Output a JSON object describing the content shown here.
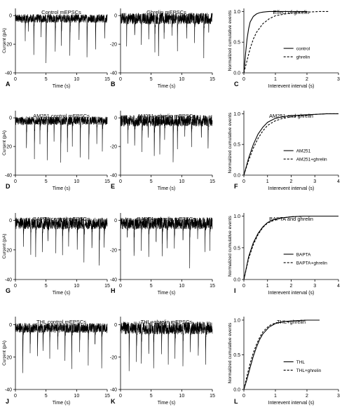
{
  "chart_data": [
    {
      "type": "line",
      "panel": "A",
      "title": "Control mEPSCs",
      "xlabel": "Time (s)",
      "ylabel": "Current (pA)",
      "xlim": [
        0,
        15
      ],
      "ylim": [
        -40,
        5
      ],
      "xticks": [
        0,
        5,
        10,
        15
      ],
      "yticks": [
        0,
        -20,
        -40
      ],
      "trace": "mEPSC recording",
      "baseline_pA": -2,
      "noise_pA": 3,
      "events": [
        {
          "t": 1.6,
          "amp": -14
        },
        {
          "t": 2.1,
          "amp": -10
        },
        {
          "t": 3.0,
          "amp": -24
        },
        {
          "t": 4.2,
          "amp": -12
        },
        {
          "t": 5.0,
          "amp": -34
        },
        {
          "t": 6.5,
          "amp": -22
        },
        {
          "t": 7.5,
          "amp": -17
        },
        {
          "t": 8.9,
          "amp": -28
        },
        {
          "t": 10.4,
          "amp": -15
        },
        {
          "t": 11.7,
          "amp": -27
        },
        {
          "t": 13.1,
          "amp": -19
        },
        {
          "t": 14.6,
          "amp": -12
        }
      ]
    },
    {
      "type": "line",
      "panel": "B",
      "title": "Ghrelin mEPSCs",
      "xlabel": "Time (s)",
      "ylabel": "",
      "xlim": [
        0,
        15
      ],
      "ylim": [
        -40,
        5
      ],
      "xticks": [
        0,
        5,
        10,
        15
      ],
      "yticks": [
        0,
        -20,
        -40
      ],
      "trace": "mEPSC recording",
      "baseline_pA": -2,
      "noise_pA": 4,
      "events": [
        {
          "t": 1.0,
          "amp": -16
        },
        {
          "t": 2.3,
          "amp": -13
        },
        {
          "t": 3.4,
          "amp": -18
        },
        {
          "t": 4.6,
          "amp": -12
        },
        {
          "t": 5.6,
          "amp": -20
        },
        {
          "t": 6.2,
          "amp": -26
        },
        {
          "t": 7.1,
          "amp": -15
        },
        {
          "t": 8.4,
          "amp": -14
        },
        {
          "t": 9.3,
          "amp": -21
        },
        {
          "t": 10.8,
          "amp": -13
        },
        {
          "t": 12.1,
          "amp": -18
        },
        {
          "t": 13.6,
          "amp": -24
        },
        {
          "t": 14.4,
          "amp": -11
        }
      ]
    },
    {
      "type": "line",
      "panel": "C",
      "title": "Effect of ghrelin",
      "xlabel": "Interevent interval (s)",
      "ylabel": "Normalized cumulative events",
      "xlim": [
        0,
        3
      ],
      "ylim": [
        0,
        1.05
      ],
      "xticks": [
        0,
        1,
        2,
        3
      ],
      "yticks": [
        0.0,
        0.5,
        1.0
      ],
      "legend": "right",
      "series": [
        {
          "name": "control",
          "style": "solid",
          "x": [
            0,
            0.05,
            0.1,
            0.15,
            0.2,
            0.3,
            0.4,
            0.5,
            0.6,
            0.8,
            1.0,
            1.5,
            2.0
          ],
          "y": [
            0,
            0.3,
            0.55,
            0.72,
            0.83,
            0.92,
            0.96,
            0.98,
            0.99,
            1.0,
            1.0,
            1.0,
            1.0
          ]
        },
        {
          "name": "ghrelin",
          "style": "dashed",
          "x": [
            0,
            0.1,
            0.2,
            0.3,
            0.4,
            0.6,
            0.8,
            1.0,
            1.3,
            1.6,
            2.0,
            2.4,
            2.7
          ],
          "y": [
            0,
            0.2,
            0.4,
            0.55,
            0.66,
            0.8,
            0.88,
            0.93,
            0.96,
            0.98,
            0.99,
            1.0,
            1.0
          ]
        }
      ]
    },
    {
      "type": "line",
      "panel": "D",
      "title": "AM251 control mEPSCs",
      "xlabel": "Time (s)",
      "ylabel": "Current (pA)",
      "xlim": [
        0,
        15
      ],
      "ylim": [
        -40,
        5
      ],
      "xticks": [
        0,
        5,
        10,
        15
      ],
      "yticks": [
        0,
        -20,
        -40
      ],
      "trace": "mEPSC recording",
      "baseline_pA": -2,
      "noise_pA": 3,
      "events": [
        {
          "t": 1.8,
          "amp": -22
        },
        {
          "t": 3.1,
          "amp": -26
        },
        {
          "t": 4.0,
          "amp": -14
        },
        {
          "t": 5.2,
          "amp": -25
        },
        {
          "t": 6.3,
          "amp": -12
        },
        {
          "t": 7.4,
          "amp": -29
        },
        {
          "t": 8.5,
          "amp": -21
        },
        {
          "t": 9.3,
          "amp": -16
        },
        {
          "t": 10.6,
          "amp": -24
        },
        {
          "t": 12.0,
          "amp": -25
        },
        {
          "t": 13.3,
          "amp": -14
        },
        {
          "t": 14.2,
          "amp": -19
        }
      ]
    },
    {
      "type": "line",
      "panel": "E",
      "title": "AM251+ghrelin mEPSCs",
      "xlabel": "Time (s)",
      "ylabel": "",
      "xlim": [
        0,
        15
      ],
      "ylim": [
        -40,
        5
      ],
      "xticks": [
        0,
        5,
        10,
        15
      ],
      "yticks": [
        0,
        -20,
        -40
      ],
      "trace": "mEPSC recording",
      "baseline_pA": -2,
      "noise_pA": 4,
      "events": [
        {
          "t": 1.2,
          "amp": -14
        },
        {
          "t": 2.3,
          "amp": -18
        },
        {
          "t": 3.5,
          "amp": -22
        },
        {
          "t": 4.5,
          "amp": -13
        },
        {
          "t": 5.5,
          "amp": -28
        },
        {
          "t": 6.4,
          "amp": -26
        },
        {
          "t": 7.2,
          "amp": -14
        },
        {
          "t": 8.6,
          "amp": -31
        },
        {
          "t": 9.3,
          "amp": -20
        },
        {
          "t": 10.5,
          "amp": -12
        },
        {
          "t": 11.6,
          "amp": -17
        },
        {
          "t": 13.2,
          "amp": -15
        },
        {
          "t": 14.3,
          "amp": -22
        }
      ]
    },
    {
      "type": "line",
      "panel": "F",
      "title": "AM251 and ghrelin",
      "xlabel": "Interevent interval (s)",
      "ylabel": "Normalized cumulative events",
      "xlim": [
        0,
        4
      ],
      "ylim": [
        0,
        1.05
      ],
      "xticks": [
        0,
        1,
        2,
        3,
        4
      ],
      "yticks": [
        0.0,
        0.5,
        1.0
      ],
      "legend": "right",
      "series": [
        {
          "name": "AM251",
          "style": "solid",
          "x": [
            0,
            0.2,
            0.4,
            0.6,
            0.8,
            1.0,
            1.3,
            1.6,
            2.0,
            2.5,
            3.0,
            3.5,
            4.0
          ],
          "y": [
            0,
            0.28,
            0.5,
            0.67,
            0.78,
            0.86,
            0.92,
            0.95,
            0.97,
            0.98,
            0.99,
            1.0,
            1.0
          ]
        },
        {
          "name": "AM251+ghrelin",
          "style": "dashed",
          "x": [
            0,
            0.2,
            0.4,
            0.6,
            0.8,
            1.0,
            1.3,
            1.6,
            2.0,
            2.5,
            3.0,
            3.5,
            4.0
          ],
          "y": [
            0,
            0.24,
            0.44,
            0.6,
            0.72,
            0.81,
            0.88,
            0.92,
            0.95,
            0.97,
            0.99,
            1.0,
            1.0
          ]
        }
      ]
    },
    {
      "type": "line",
      "panel": "G",
      "title": "BAPTA control mEPSCs",
      "xlabel": "Time (s)",
      "ylabel": "Current (pA)",
      "xlim": [
        0,
        15
      ],
      "ylim": [
        -40,
        5
      ],
      "xticks": [
        0,
        5,
        10,
        15
      ],
      "yticks": [
        0,
        -20,
        -40
      ],
      "trace": "mEPSC recording",
      "baseline_pA": -2,
      "noise_pA": 4,
      "events": [
        {
          "t": 1.3,
          "amp": -14
        },
        {
          "t": 2.5,
          "amp": -20
        },
        {
          "t": 3.3,
          "amp": -25
        },
        {
          "t": 4.4,
          "amp": -16
        },
        {
          "t": 5.3,
          "amp": -13
        },
        {
          "t": 6.6,
          "amp": -19
        },
        {
          "t": 7.7,
          "amp": -22
        },
        {
          "t": 8.7,
          "amp": -15
        },
        {
          "t": 10.1,
          "amp": -18
        },
        {
          "t": 11.2,
          "amp": -24
        },
        {
          "t": 12.5,
          "amp": -20
        },
        {
          "t": 13.7,
          "amp": -30
        },
        {
          "t": 14.5,
          "amp": -16
        }
      ]
    },
    {
      "type": "line",
      "panel": "H",
      "title": "BAPTA+ghrelin mEPSCs",
      "xlabel": "Time (s)",
      "ylabel": "",
      "xlim": [
        0,
        15
      ],
      "ylim": [
        -40,
        5
      ],
      "xticks": [
        0,
        5,
        10,
        15
      ],
      "yticks": [
        0,
        -20,
        -40
      ],
      "trace": "mEPSC recording",
      "baseline_pA": -2,
      "noise_pA": 4,
      "events": [
        {
          "t": 1.1,
          "amp": -13
        },
        {
          "t": 2.2,
          "amp": -24
        },
        {
          "t": 3.4,
          "amp": -15
        },
        {
          "t": 4.6,
          "amp": -19
        },
        {
          "t": 5.8,
          "amp": -14
        },
        {
          "t": 6.8,
          "amp": -25
        },
        {
          "t": 7.6,
          "amp": -16
        },
        {
          "t": 8.8,
          "amp": -21
        },
        {
          "t": 10.2,
          "amp": -13
        },
        {
          "t": 11.3,
          "amp": -27
        },
        {
          "t": 12.6,
          "amp": -12
        },
        {
          "t": 13.8,
          "amp": -18
        },
        {
          "t": 14.6,
          "amp": -15
        }
      ]
    },
    {
      "type": "line",
      "panel": "I",
      "title": "BAPTA and ghrelin",
      "xlabel": "Interevent interval (s)",
      "ylabel": "Normalized cumulative events",
      "xlim": [
        0,
        4
      ],
      "ylim": [
        0,
        1.05
      ],
      "xticks": [
        0,
        1,
        2,
        3,
        4
      ],
      "yticks": [
        0.0,
        0.5,
        1.0
      ],
      "legend": "right",
      "series": [
        {
          "name": "BAPTA",
          "style": "solid",
          "x": [
            0,
            0.2,
            0.4,
            0.6,
            0.8,
            1.0,
            1.3,
            1.6,
            2.0,
            2.5,
            3.0,
            4.0
          ],
          "y": [
            0,
            0.36,
            0.58,
            0.73,
            0.83,
            0.9,
            0.95,
            0.97,
            0.99,
            1.0,
            1.0,
            1.0
          ]
        },
        {
          "name": "BAPTA+ghrelin",
          "style": "dashed",
          "x": [
            0,
            0.2,
            0.4,
            0.6,
            0.8,
            1.0,
            1.3,
            1.6,
            2.0,
            2.5,
            3.0,
            4.0
          ],
          "y": [
            0,
            0.33,
            0.55,
            0.71,
            0.82,
            0.89,
            0.94,
            0.97,
            0.99,
            1.0,
            1.0,
            1.0
          ]
        }
      ]
    },
    {
      "type": "line",
      "panel": "J",
      "title": "THL control mEPSCs",
      "xlabel": "Time (s)",
      "ylabel": "Current (pA)",
      "xlim": [
        0,
        15
      ],
      "ylim": [
        -40,
        5
      ],
      "xticks": [
        0,
        5,
        10,
        15
      ],
      "yticks": [
        0,
        -20,
        -40
      ],
      "trace": "mEPSC recording",
      "baseline_pA": -2,
      "noise_pA": 3,
      "events": [
        {
          "t": 1.2,
          "amp": -28
        },
        {
          "t": 2.4,
          "amp": -16
        },
        {
          "t": 3.6,
          "amp": -20
        },
        {
          "t": 4.5,
          "amp": -13
        },
        {
          "t": 5.6,
          "amp": -18
        },
        {
          "t": 6.9,
          "amp": -14
        },
        {
          "t": 8.1,
          "amp": -19
        },
        {
          "t": 9.2,
          "amp": -24
        },
        {
          "t": 10.5,
          "amp": -15
        },
        {
          "t": 11.9,
          "amp": -21
        },
        {
          "t": 13.0,
          "amp": -12
        },
        {
          "t": 14.1,
          "amp": -22
        }
      ]
    },
    {
      "type": "line",
      "panel": "K",
      "title": "THL+ghrelin mEPSCs",
      "xlabel": "Time (s)",
      "ylabel": "",
      "xlim": [
        0,
        15
      ],
      "ylim": [
        -40,
        5
      ],
      "xticks": [
        0,
        5,
        10,
        15
      ],
      "yticks": [
        0,
        -20,
        -40
      ],
      "trace": "mEPSC recording",
      "baseline_pA": -2,
      "noise_pA": 4,
      "events": [
        {
          "t": 1.4,
          "amp": -30
        },
        {
          "t": 2.6,
          "amp": -18
        },
        {
          "t": 3.4,
          "amp": -24
        },
        {
          "t": 4.6,
          "amp": -15
        },
        {
          "t": 5.4,
          "amp": -21
        },
        {
          "t": 6.7,
          "amp": -13
        },
        {
          "t": 7.8,
          "amp": -19
        },
        {
          "t": 8.9,
          "amp": -16
        },
        {
          "t": 10.2,
          "amp": -22
        },
        {
          "t": 11.4,
          "amp": -14
        },
        {
          "t": 12.7,
          "amp": -18
        },
        {
          "t": 13.9,
          "amp": -20
        }
      ]
    },
    {
      "type": "line",
      "panel": "L",
      "title": "THL+ghrelin",
      "xlabel": "Interevent interval (s)",
      "ylabel": "Normalized cumulative events",
      "xlim": [
        0,
        3
      ],
      "ylim": [
        0,
        1.05
      ],
      "xticks": [
        0,
        1,
        2,
        3
      ],
      "yticks": [
        0.0,
        0.5,
        1.0
      ],
      "legend": "right",
      "series": [
        {
          "name": "THL",
          "style": "solid",
          "x": [
            0,
            0.1,
            0.2,
            0.3,
            0.4,
            0.5,
            0.6,
            0.8,
            1.0,
            1.3,
            1.6,
            2.0,
            2.4
          ],
          "y": [
            0,
            0.15,
            0.32,
            0.48,
            0.61,
            0.72,
            0.8,
            0.9,
            0.95,
            0.98,
            0.99,
            1.0,
            1.0
          ]
        },
        {
          "name": "THL+ghrelin",
          "style": "dashed",
          "x": [
            0,
            0.1,
            0.2,
            0.3,
            0.4,
            0.5,
            0.6,
            0.8,
            1.0,
            1.3,
            1.6,
            2.0,
            2.4
          ],
          "y": [
            0,
            0.2,
            0.38,
            0.53,
            0.65,
            0.75,
            0.83,
            0.92,
            0.96,
            0.98,
            0.99,
            1.0,
            1.0
          ]
        }
      ]
    }
  ]
}
